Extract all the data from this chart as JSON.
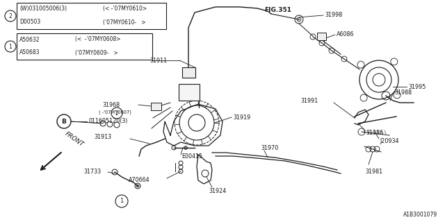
{
  "bg_color": "#ffffff",
  "line_color": "#1a1a1a",
  "fig_width": 6.4,
  "fig_height": 3.2,
  "dpi": 100,
  "diagram_id": "A1B3001079",
  "fig_ref": "FIG.351",
  "table1_rows": [
    [
      "(W)031005006(3)",
      "(<   -’07MY0610>"
    ],
    [
      "D00503",
      "(<’07MY0610-   >"
    ]
  ],
  "table2_rows": [
    [
      "A50632",
      "(<  -’07MY0608>"
    ],
    [
      "A50683",
      "(<’07MY0609-   >"
    ]
  ]
}
